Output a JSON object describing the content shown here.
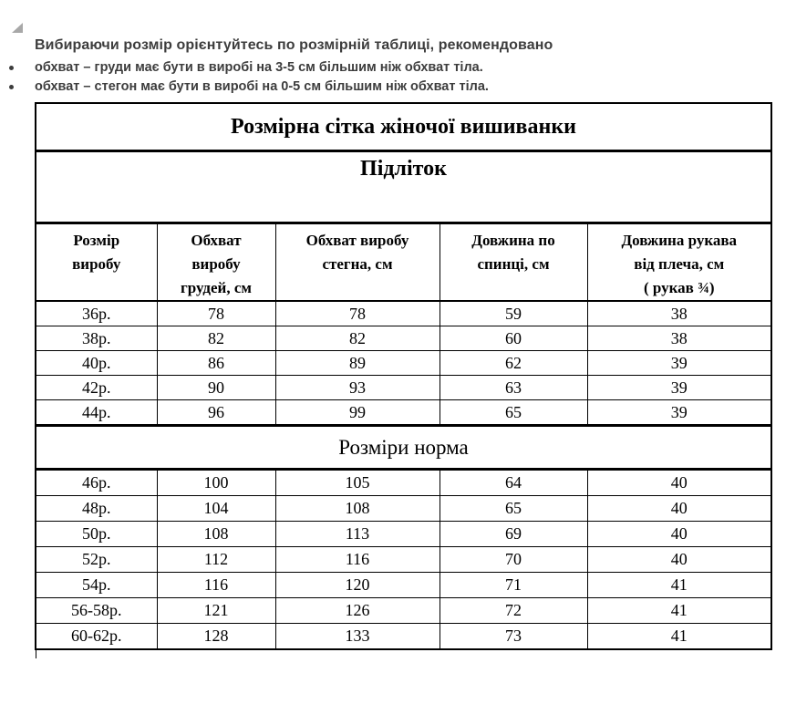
{
  "colors": {
    "background": "#ffffff",
    "intro_text": "#3d3d3d",
    "table_text": "#000000",
    "table_border": "#000000",
    "anchor_triangle": "#a8a8a8"
  },
  "intro": {
    "heading": "Вибираючи розмір орієнтуйтесь по розмірній таблиці, рекомендовано",
    "bullets": [
      "обхват – груди має бути в виробі на 3-5 см більшим ніж обхват тіла.",
      "обхват – стегон має бути в виробі на 0-5 см більшим ніж обхват тіла."
    ]
  },
  "size_table": {
    "title": "Розмірна сітка жіночої вишиванки",
    "sections": {
      "teen": "Підліток",
      "norm": "Розміри норма"
    },
    "columns": [
      [
        "Розмір",
        "виробу"
      ],
      [
        "Обхват",
        "виробу",
        "грудей, см"
      ],
      [
        "Обхват виробу",
        "стегна, см"
      ],
      [
        "Довжина по",
        "спинці, см"
      ],
      [
        "Довжина рукава",
        "від плеча, см",
        "( рукав ¾)"
      ]
    ],
    "teen_rows": [
      [
        "36р.",
        "78",
        "78",
        "59",
        "38"
      ],
      [
        "38р.",
        "82",
        "82",
        "60",
        "38"
      ],
      [
        "40р.",
        "86",
        "89",
        "62",
        "39"
      ],
      [
        "42р.",
        "90",
        "93",
        "63",
        "39"
      ],
      [
        "44р.",
        "96",
        "99",
        "65",
        "39"
      ]
    ],
    "norm_rows": [
      [
        "46р.",
        "100",
        "105",
        "64",
        "40"
      ],
      [
        "48р.",
        "104",
        "108",
        "65",
        "40"
      ],
      [
        "50р.",
        "108",
        "113",
        "69",
        "40"
      ],
      [
        "52р.",
        "112",
        "116",
        "70",
        "40"
      ],
      [
        "54р.",
        "116",
        "120",
        "71",
        "41"
      ],
      [
        "56-58р.",
        "121",
        "126",
        "72",
        "41"
      ],
      [
        "60-62р.",
        "128",
        "133",
        "73",
        "41"
      ]
    ]
  }
}
